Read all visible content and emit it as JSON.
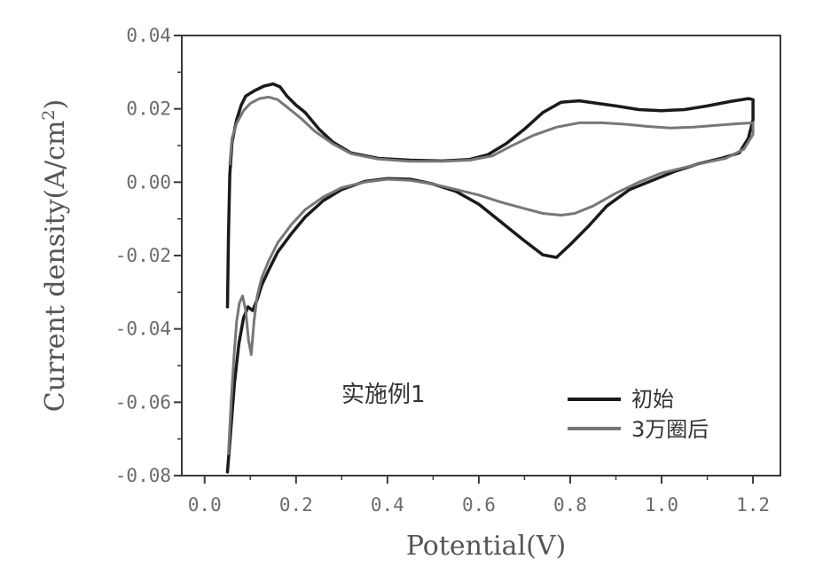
{
  "chart_data": {
    "type": "line",
    "xlabel": "Potential(V)",
    "ylabel": "Current density(A/cm",
    "ylabel_sup": "2",
    "ylabel_close": ")",
    "xlim": [
      -0.05,
      1.26
    ],
    "ylim": [
      -0.08,
      0.04
    ],
    "xticks": [
      0.0,
      0.2,
      0.4,
      0.6,
      0.8,
      1.0,
      1.2
    ],
    "yticks": [
      -0.08,
      -0.06,
      -0.04,
      -0.02,
      0.0,
      0.02,
      0.04
    ],
    "xtick_labels": [
      "0.0",
      "0.2",
      "0.4",
      "0.6",
      "0.8",
      "1.0",
      "1.2"
    ],
    "ytick_labels": [
      "-0.08",
      "-0.06",
      "-0.04",
      "-0.02",
      "0.00",
      "0.02",
      "0.04"
    ],
    "annotation": "实施例1",
    "legend_position": "bottom-right",
    "series": [
      {
        "name": "初始",
        "color": "#1a1a1a",
        "points": [
          [
            0.05,
            -0.034
          ],
          [
            0.052,
            -0.015
          ],
          [
            0.055,
            0.002
          ],
          [
            0.06,
            0.011
          ],
          [
            0.07,
            0.017
          ],
          [
            0.08,
            0.021
          ],
          [
            0.09,
            0.0235
          ],
          [
            0.11,
            0.025
          ],
          [
            0.13,
            0.0262
          ],
          [
            0.15,
            0.0268
          ],
          [
            0.165,
            0.026
          ],
          [
            0.18,
            0.0235
          ],
          [
            0.2,
            0.021
          ],
          [
            0.22,
            0.019
          ],
          [
            0.25,
            0.0145
          ],
          [
            0.28,
            0.011
          ],
          [
            0.32,
            0.008
          ],
          [
            0.38,
            0.0065
          ],
          [
            0.45,
            0.006
          ],
          [
            0.52,
            0.0058
          ],
          [
            0.58,
            0.0062
          ],
          [
            0.62,
            0.0075
          ],
          [
            0.66,
            0.0105
          ],
          [
            0.7,
            0.0145
          ],
          [
            0.74,
            0.019
          ],
          [
            0.78,
            0.0218
          ],
          [
            0.82,
            0.0222
          ],
          [
            0.86,
            0.0215
          ],
          [
            0.9,
            0.0208
          ],
          [
            0.95,
            0.0198
          ],
          [
            1.0,
            0.0195
          ],
          [
            1.05,
            0.0198
          ],
          [
            1.1,
            0.0208
          ],
          [
            1.15,
            0.022
          ],
          [
            1.19,
            0.0228
          ],
          [
            1.2,
            0.0225
          ],
          [
            1.2,
            0.017
          ],
          [
            1.19,
            0.012
          ],
          [
            1.17,
            0.008
          ],
          [
            1.13,
            0.0065
          ],
          [
            1.08,
            0.005
          ],
          [
            1.03,
            0.003
          ],
          [
            0.98,
            0.0005
          ],
          [
            0.93,
            -0.002
          ],
          [
            0.88,
            -0.0065
          ],
          [
            0.84,
            -0.012
          ],
          [
            0.8,
            -0.017
          ],
          [
            0.77,
            -0.0205
          ],
          [
            0.74,
            -0.0198
          ],
          [
            0.7,
            -0.016
          ],
          [
            0.65,
            -0.011
          ],
          [
            0.6,
            -0.006
          ],
          [
            0.55,
            -0.0025
          ],
          [
            0.5,
            -0.0005
          ],
          [
            0.45,
            0.0008
          ],
          [
            0.4,
            0.001
          ],
          [
            0.35,
            0.0002
          ],
          [
            0.3,
            -0.002
          ],
          [
            0.26,
            -0.005
          ],
          [
            0.22,
            -0.0095
          ],
          [
            0.19,
            -0.014
          ],
          [
            0.16,
            -0.019
          ],
          [
            0.14,
            -0.024
          ],
          [
            0.125,
            -0.028
          ],
          [
            0.115,
            -0.032
          ],
          [
            0.105,
            -0.035
          ],
          [
            0.095,
            -0.034
          ],
          [
            0.085,
            -0.037
          ],
          [
            0.075,
            -0.044
          ],
          [
            0.065,
            -0.055
          ],
          [
            0.057,
            -0.068
          ],
          [
            0.05,
            -0.079
          ]
        ]
      },
      {
        "name": "3万圈后",
        "color": "#777777",
        "points": [
          [
            0.055,
            0.005
          ],
          [
            0.06,
            0.012
          ],
          [
            0.07,
            0.016
          ],
          [
            0.085,
            0.0195
          ],
          [
            0.1,
            0.0215
          ],
          [
            0.12,
            0.0228
          ],
          [
            0.14,
            0.0232
          ],
          [
            0.16,
            0.0225
          ],
          [
            0.18,
            0.0205
          ],
          [
            0.21,
            0.0175
          ],
          [
            0.24,
            0.014
          ],
          [
            0.28,
            0.0105
          ],
          [
            0.32,
            0.0078
          ],
          [
            0.38,
            0.0063
          ],
          [
            0.45,
            0.0057
          ],
          [
            0.52,
            0.0057
          ],
          [
            0.58,
            0.006
          ],
          [
            0.63,
            0.0072
          ],
          [
            0.67,
            0.0098
          ],
          [
            0.72,
            0.0128
          ],
          [
            0.77,
            0.015
          ],
          [
            0.82,
            0.0162
          ],
          [
            0.87,
            0.0162
          ],
          [
            0.92,
            0.0158
          ],
          [
            0.97,
            0.0152
          ],
          [
            1.02,
            0.0148
          ],
          [
            1.07,
            0.015
          ],
          [
            1.12,
            0.0155
          ],
          [
            1.17,
            0.016
          ],
          [
            1.2,
            0.0162
          ],
          [
            1.2,
            0.013
          ],
          [
            1.18,
            0.009
          ],
          [
            1.14,
            0.0065
          ],
          [
            1.1,
            0.0055
          ],
          [
            1.05,
            0.004
          ],
          [
            1.0,
            0.0025
          ],
          [
            0.95,
            0.0
          ],
          [
            0.9,
            -0.003
          ],
          [
            0.85,
            -0.0065
          ],
          [
            0.81,
            -0.0085
          ],
          [
            0.78,
            -0.009
          ],
          [
            0.74,
            -0.0085
          ],
          [
            0.7,
            -0.0072
          ],
          [
            0.65,
            -0.0055
          ],
          [
            0.6,
            -0.0035
          ],
          [
            0.55,
            -0.002
          ],
          [
            0.5,
            -0.0005
          ],
          [
            0.45,
            0.0005
          ],
          [
            0.4,
            0.0008
          ],
          [
            0.35,
            0.0
          ],
          [
            0.3,
            -0.0015
          ],
          [
            0.26,
            -0.004
          ],
          [
            0.22,
            -0.0075
          ],
          [
            0.19,
            -0.0115
          ],
          [
            0.16,
            -0.0165
          ],
          [
            0.14,
            -0.0215
          ],
          [
            0.125,
            -0.026
          ],
          [
            0.115,
            -0.031
          ],
          [
            0.108,
            -0.038
          ],
          [
            0.102,
            -0.047
          ],
          [
            0.096,
            -0.043
          ],
          [
            0.09,
            -0.035
          ],
          [
            0.083,
            -0.031
          ],
          [
            0.076,
            -0.033
          ],
          [
            0.07,
            -0.038
          ],
          [
            0.064,
            -0.048
          ],
          [
            0.058,
            -0.06
          ],
          [
            0.052,
            -0.074
          ]
        ]
      }
    ]
  }
}
